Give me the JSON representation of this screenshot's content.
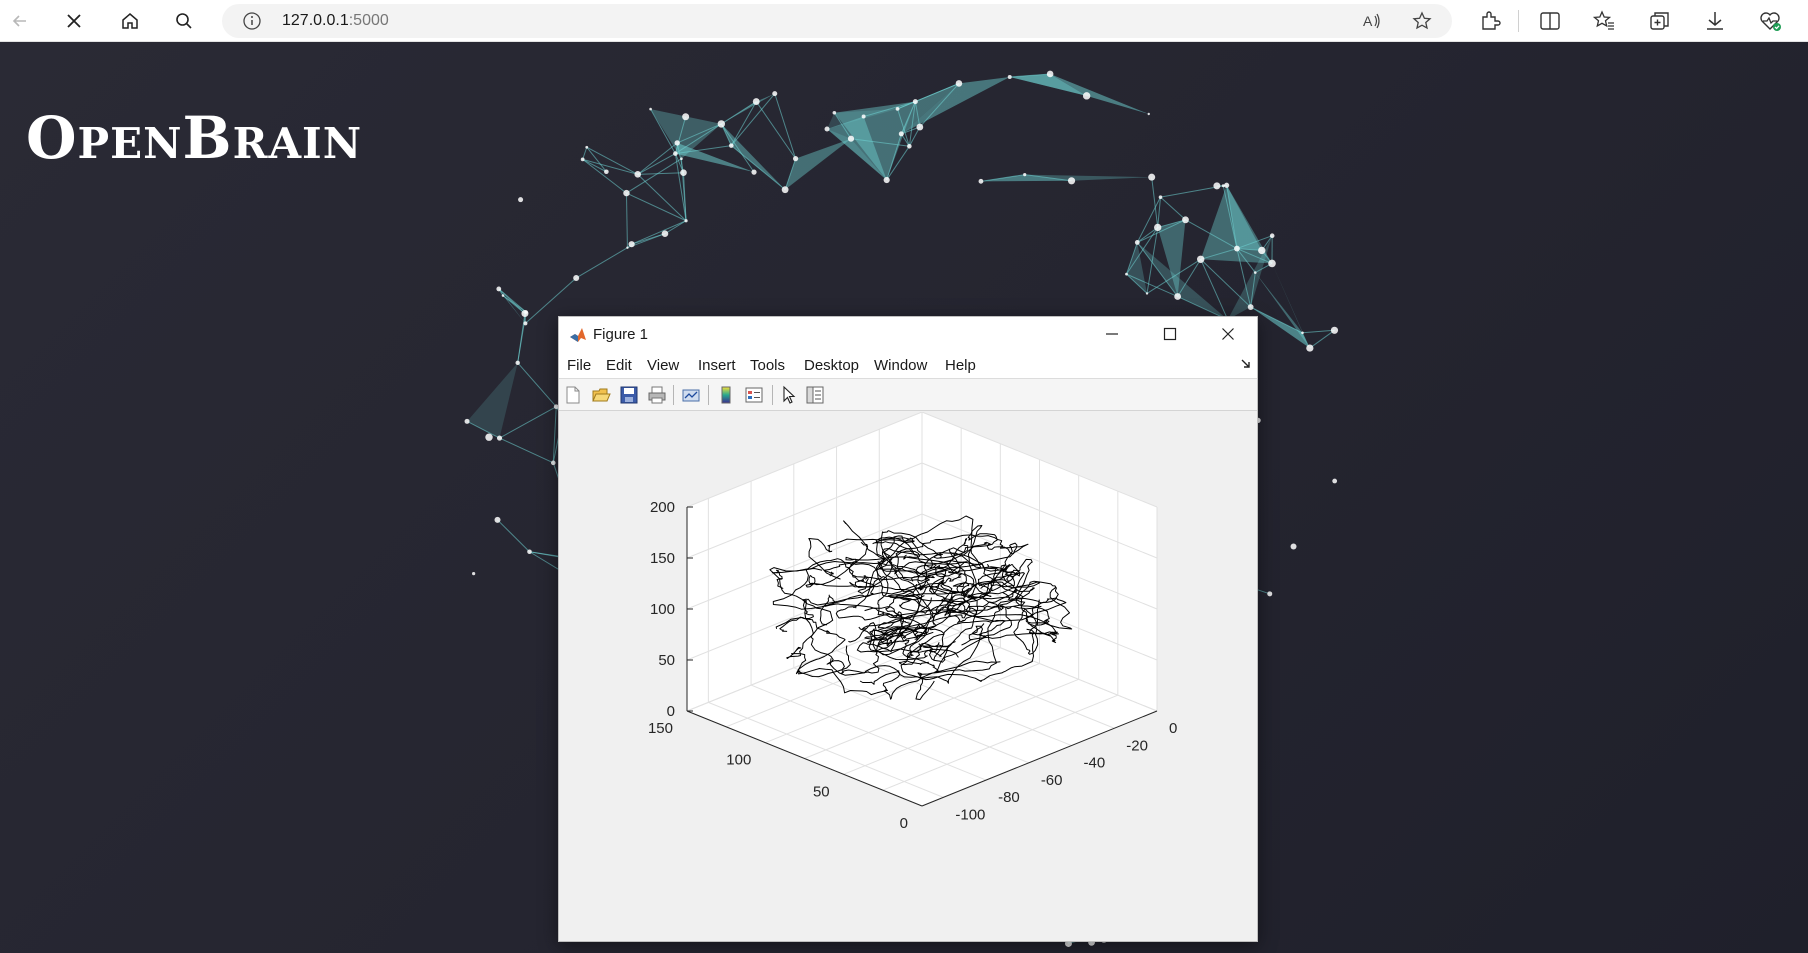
{
  "browser": {
    "url_host": "127.0.0.1",
    "url_port": ":5000",
    "icons": [
      "back-icon",
      "stop-icon",
      "home-icon",
      "search-icon",
      "info-icon",
      "read-aloud-icon",
      "favorite-star-icon",
      "extensions-icon",
      "split-screen-icon",
      "favorites-icon",
      "collections-icon",
      "downloads-icon",
      "browser-essentials-icon"
    ]
  },
  "brand": {
    "first_cap": "O",
    "first_rest": "PEN",
    "second_cap": "B",
    "second_rest": "RAIN"
  },
  "colors": {
    "background": "#262631",
    "network_accent": "#6fd3d3",
    "matlab_orange": "#e2672b"
  },
  "figure": {
    "title": "Figure 1",
    "menu": [
      "File",
      "Edit",
      "View",
      "Insert",
      "Tools",
      "Desktop",
      "Window",
      "Help"
    ],
    "toolbar_icons": [
      "new-figure-icon",
      "open-file-icon",
      "save-icon",
      "print-icon",
      "link-plot-icon",
      "insert-colorbar-icon",
      "insert-legend-icon",
      "edit-plot-icon",
      "property-inspector-icon"
    ]
  },
  "chart_data": {
    "type": "line",
    "title": "",
    "projection": "3d",
    "xlabel": "",
    "ylabel": "",
    "zlabel": "",
    "xlim": [
      0,
      150
    ],
    "ylim": [
      -110,
      0
    ],
    "zlim": [
      0,
      200
    ],
    "grid": true,
    "x_ticks": [
      "150",
      "100",
      "50",
      "0"
    ],
    "y_ticks": [
      "0",
      "-20",
      "-40",
      "-60",
      "-80",
      "-100"
    ],
    "z_ticks": [
      "200",
      "150",
      "100",
      "50",
      "0"
    ],
    "series": [
      {
        "description": "tangled fibre tracts",
        "color": "#000000"
      }
    ]
  }
}
